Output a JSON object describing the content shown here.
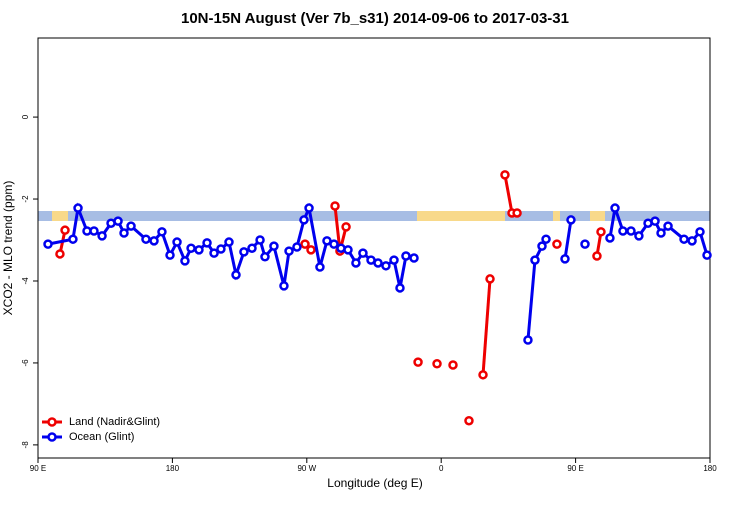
{
  "chart_data": {
    "type": "line",
    "title": "10N-15N August (Ver 7b_s31)   2014-09-06 to 2017-03-31",
    "xlabel": "Longitude (deg E)",
    "ylabel": "XCO2 - MLO trend (ppm)",
    "xlim": [
      90,
      540
    ],
    "ylim": [
      -8.32,
      1.93
    ],
    "xticks": [
      {
        "value": 90,
        "label": "90 E"
      },
      180,
      {
        "value": 270,
        "label": "90 W"
      },
      {
        "value": 360,
        "label": "0"
      },
      {
        "value": 450,
        "label": "90 E"
      },
      {
        "value": 540,
        "label": "180"
      }
    ],
    "yticks": [
      0,
      -2,
      -4,
      -6,
      -8
    ],
    "legend": "bottom-left",
    "series": [
      {
        "name": "Land (Nadir&Glint)",
        "color": "#ee0000",
        "x": [
          104.7,
          108.1,
          null,
          268.8,
          272.8,
          null,
          288.9,
          292.2,
          296.3,
          null,
          344.5,
          null,
          357.2,
          null,
          367.9,
          null,
          378.6,
          null,
          388.0,
          392.7,
          null,
          402.7,
          407.4,
          410.8,
          null,
          437.5,
          null,
          464.3,
          467.0
        ],
        "values": [
          -3.34,
          -2.76,
          null,
          -3.1,
          -3.24,
          null,
          -2.17,
          -3.27,
          -2.68,
          null,
          -5.98,
          null,
          -6.02,
          null,
          -6.05,
          null,
          -7.41,
          null,
          -6.29,
          -3.95,
          null,
          -1.41,
          -2.34,
          -2.34,
          null,
          -3.1,
          null,
          -3.39,
          -2.8
        ]
      },
      {
        "name": "Ocean (Glint)",
        "color": "#0000ee",
        "x": [
          96.7,
          113.4,
          116.8,
          122.8,
          127.5,
          132.9,
          138.9,
          143.6,
          147.6,
          152.3,
          162.3,
          167.7,
          173.0,
          178.4,
          183.1,
          188.4,
          192.5,
          197.8,
          203.2,
          207.9,
          212.5,
          217.9,
          222.6,
          227.9,
          233.3,
          238.7,
          242.0,
          248.0,
          254.7,
          258.1,
          263.4,
          268.1,
          271.5,
          278.8,
          283.5,
          288.2,
          292.9,
          297.6,
          302.9,
          307.6,
          313.0,
          317.7,
          323.0,
          328.4,
          332.4,
          336.4,
          341.8,
          null,
          418.1,
          422.8,
          427.5,
          430.2,
          null,
          442.9,
          446.9,
          null,
          456.3,
          null,
          473.0,
          476.4,
          481.7,
          487.1,
          492.4,
          498.5,
          503.2,
          507.2,
          511.9,
          522.6,
          528.0,
          533.3,
          538.0
        ],
        "values": [
          -3.1,
          -2.98,
          -2.22,
          -2.78,
          -2.78,
          -2.9,
          -2.59,
          -2.54,
          -2.83,
          -2.66,
          -2.98,
          -3.02,
          -2.8,
          -3.37,
          -3.05,
          -3.51,
          -3.2,
          -3.24,
          -3.07,
          -3.32,
          -3.22,
          -3.05,
          -3.85,
          -3.29,
          -3.2,
          -3.0,
          -3.41,
          -3.15,
          -4.12,
          -3.27,
          -3.17,
          -2.51,
          -2.22,
          -3.66,
          -3.02,
          -3.1,
          -3.2,
          -3.24,
          -3.56,
          -3.32,
          -3.49,
          -3.56,
          -3.63,
          -3.49,
          -4.17,
          -3.39,
          -3.44,
          null,
          -5.44,
          -3.49,
          -3.15,
          -2.98,
          null,
          -3.46,
          -2.51,
          null,
          -3.1,
          null,
          -2.95,
          -2.22,
          -2.78,
          -2.78,
          -2.9,
          -2.59,
          -2.54,
          -2.83,
          -2.66,
          -2.98,
          -3.02,
          -2.8,
          -3.37
        ]
      }
    ]
  }
}
